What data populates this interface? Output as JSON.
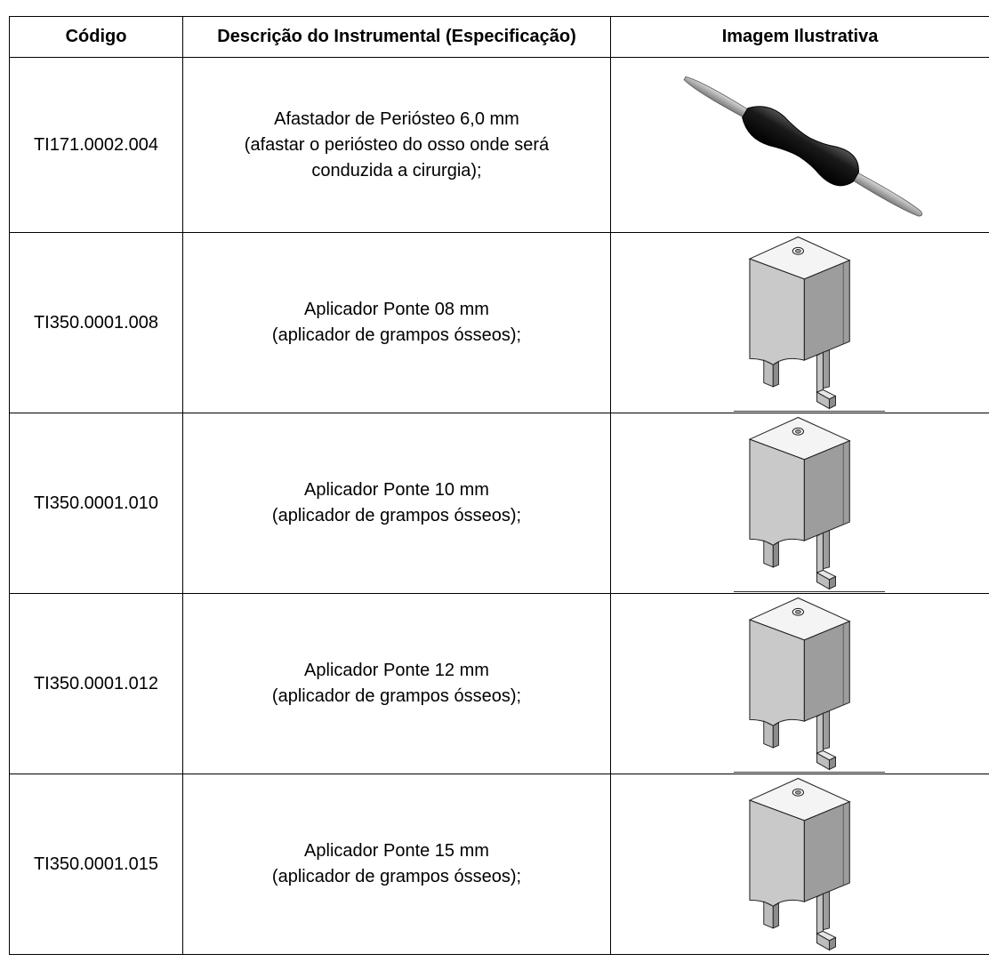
{
  "table": {
    "headers": {
      "code": "Código",
      "description": "Descrição do Instrumental (Especificação)",
      "image": "Imagem Ilustrativa"
    },
    "rows": [
      {
        "code": "TI171.0002.004",
        "desc_lines": [
          "Afastador de Periósteo 6,0 mm",
          "(afastar o periósteo do osso onde será",
          "conduzida a cirurgia);"
        ],
        "image_icon": "periosteal-elevator-illustration"
      },
      {
        "code": "TI350.0001.008",
        "desc_lines": [
          "Aplicador Ponte 08 mm",
          "(aplicador de grampos ósseos);"
        ],
        "image_icon": "bridge-applicator-illustration"
      },
      {
        "code": "TI350.0001.010",
        "desc_lines": [
          "Aplicador Ponte 10 mm",
          "(aplicador de grampos ósseos);"
        ],
        "image_icon": "bridge-applicator-illustration"
      },
      {
        "code": "TI350.0001.012",
        "desc_lines": [
          "Aplicador Ponte 12 mm",
          "(aplicador de grampos ósseos);"
        ],
        "image_icon": "bridge-applicator-illustration"
      },
      {
        "code": "TI350.0001.015",
        "desc_lines": [
          "Aplicador Ponte 15 mm",
          "(aplicador de grampos ósseos);"
        ],
        "image_icon": "bridge-applicator-illustration"
      }
    ]
  }
}
